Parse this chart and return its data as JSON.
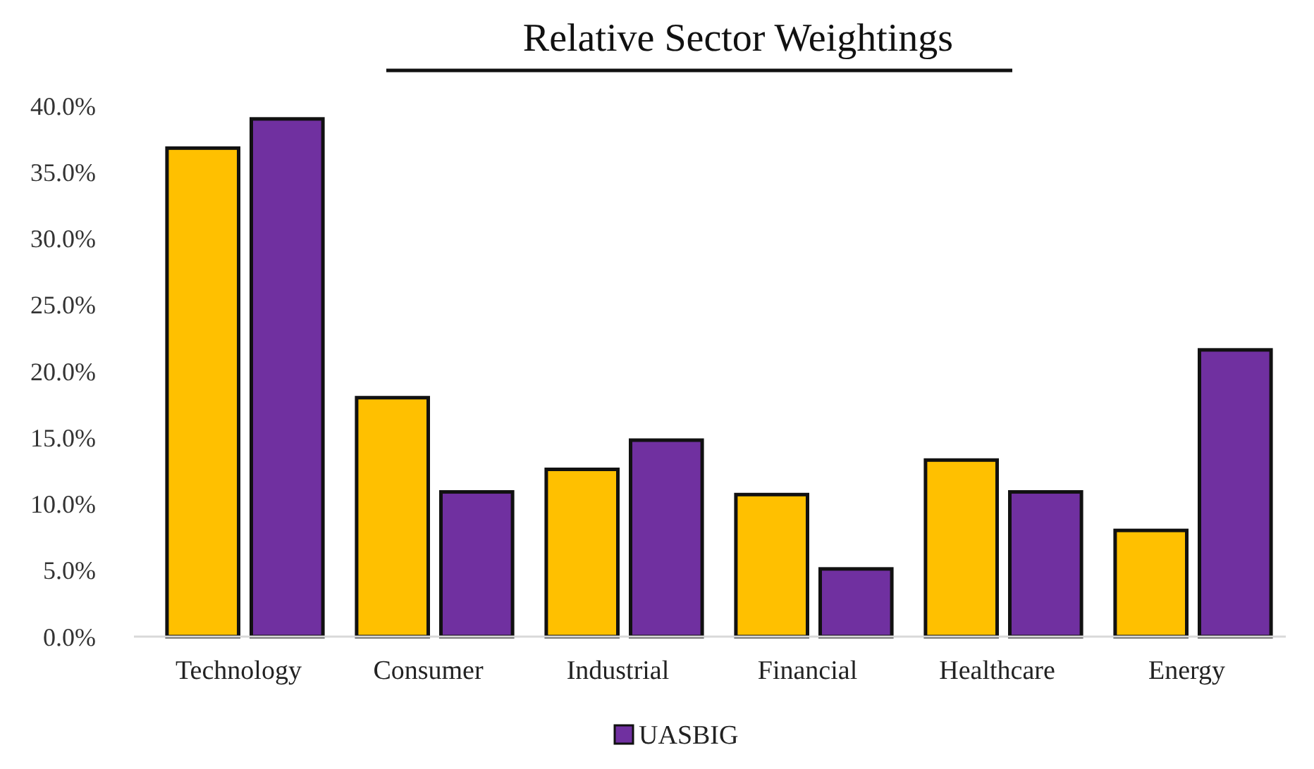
{
  "chart_data": {
    "type": "bar",
    "title": "Relative Sector Weightings",
    "categories": [
      "Technology",
      "Consumer",
      "Industrial",
      "Financial",
      "Healthcare",
      "Energy"
    ],
    "series": [
      {
        "color": "#ffc000",
        "values": [
          36.8,
          18.0,
          12.6,
          10.7,
          13.3,
          8.0
        ]
      },
      {
        "name": "UASBIG",
        "color": "#7030a0",
        "values": [
          39.0,
          10.9,
          14.8,
          5.1,
          10.9,
          21.6
        ]
      }
    ],
    "ylim": [
      0,
      40
    ],
    "yticks": [
      {
        "value": 0,
        "label": "0.0%"
      },
      {
        "value": 5,
        "label": "5.0%"
      },
      {
        "value": 10,
        "label": "10.0%"
      },
      {
        "value": 15,
        "label": "15.0%"
      },
      {
        "value": 20,
        "label": "20.0%"
      },
      {
        "value": 25,
        "label": "25.0%"
      },
      {
        "value": 30,
        "label": "30.0%"
      },
      {
        "value": 35,
        "label": "35.0%"
      },
      {
        "value": 40,
        "label": "40.0%"
      }
    ],
    "grid": false,
    "legend": "bottom"
  }
}
